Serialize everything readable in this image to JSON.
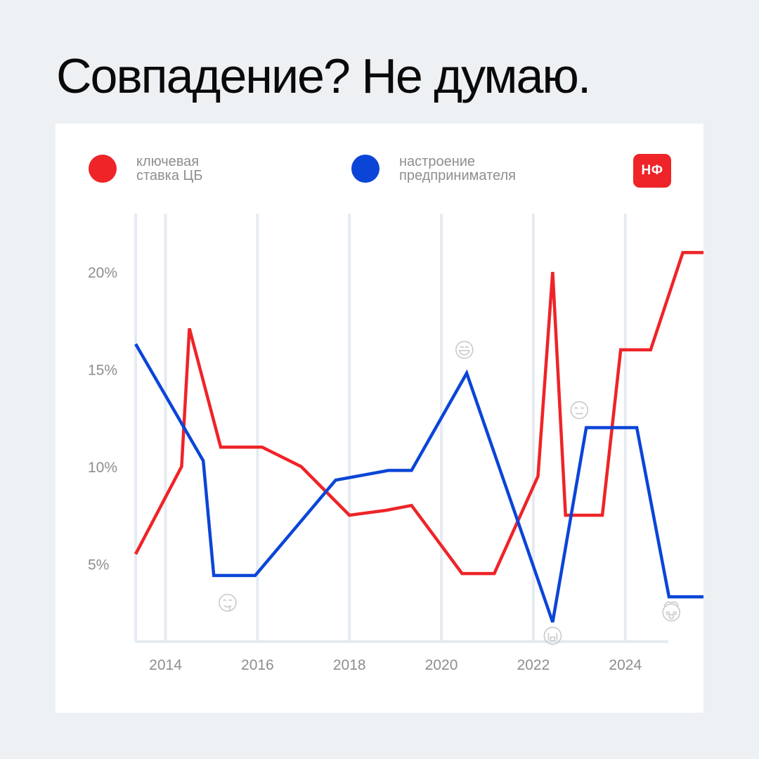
{
  "headline": "Совпадение? Не думаю.",
  "legend": [
    {
      "line1": "ключевая",
      "line2": "ставка ЦБ",
      "color": "#ee2428"
    },
    {
      "line1": "настроение",
      "line2": "предпринимателя",
      "color": "#0b45d8"
    }
  ],
  "brand": {
    "label": "НФ",
    "color": "#ee2428"
  },
  "chart_data": {
    "type": "line",
    "title": "",
    "xlabel": "",
    "ylabel": "",
    "xlim": [
      2013.35,
      2025.7
    ],
    "ylim": [
      1.0,
      23.0
    ],
    "x_ticks": [
      2014,
      2016,
      2018,
      2020,
      2022,
      2024
    ],
    "x_tick_labels": [
      "2014",
      "2016",
      "2018",
      "2020",
      "2022",
      "2024"
    ],
    "y_ticks": [
      5,
      10,
      15,
      20
    ],
    "y_tick_labels": [
      "5%",
      "10%",
      "15%",
      "20%"
    ],
    "grid": "vertical",
    "legend_position": "top",
    "series": [
      {
        "name": "ключевая ставка ЦБ",
        "color": "#ee2428",
        "x": [
          2013.35,
          2014.35,
          2014.52,
          2015.2,
          2016.1,
          2016.95,
          2018.0,
          2018.8,
          2019.35,
          2020.45,
          2021.15,
          2022.1,
          2022.42,
          2022.7,
          2023.5,
          2023.9,
          2024.55,
          2025.25,
          2025.7
        ],
        "y": [
          5.5,
          10.0,
          17.1,
          11.0,
          11.0,
          10.0,
          7.5,
          7.75,
          8.0,
          4.5,
          4.5,
          9.5,
          20.0,
          7.5,
          7.5,
          16.0,
          16.0,
          21.0,
          21.0
        ]
      },
      {
        "name": "настроение предпринимателя",
        "color": "#0b45d8",
        "x": [
          2013.35,
          2014.82,
          2015.05,
          2015.95,
          2016.7,
          2017.7,
          2018.85,
          2019.35,
          2020.55,
          2022.42,
          2023.15,
          2024.25,
          2024.95,
          2025.7
        ],
        "y": [
          16.3,
          10.3,
          4.4,
          4.4,
          6.5,
          9.3,
          9.8,
          9.8,
          14.8,
          2.0,
          12.0,
          12.0,
          3.3,
          3.3
        ]
      }
    ],
    "annotations": [
      {
        "icon": "drooling-face-icon",
        "x": 2015.35,
        "y": 3.0
      },
      {
        "icon": "grinning-face-icon",
        "x": 2020.5,
        "y": 16.0
      },
      {
        "icon": "expressionless-face-icon",
        "x": 2023.0,
        "y": 12.9
      },
      {
        "icon": "crying-face-icon",
        "x": 2022.42,
        "y": 1.3
      },
      {
        "icon": "exploding-head-icon",
        "x": 2025.0,
        "y": 2.5
      }
    ]
  }
}
